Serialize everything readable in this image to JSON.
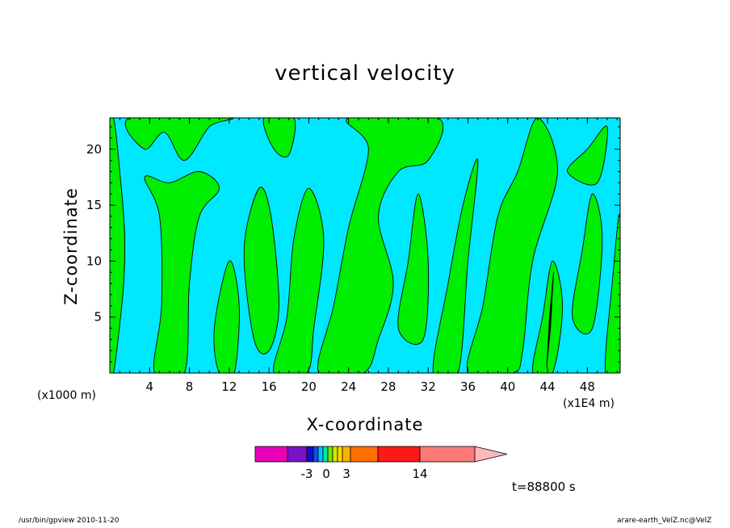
{
  "chart_data": {
    "type": "heatmap",
    "title": "vertical velocity",
    "xlabel": "X-coordinate",
    "ylabel": "Z-coordinate",
    "x_unit_left": "(x1000 m)",
    "x_unit_right": "(x1E4 m)",
    "xlim": [
      0,
      51.3
    ],
    "ylim": [
      0,
      22.8
    ],
    "x_ticks": [
      4,
      8,
      12,
      16,
      20,
      24,
      28,
      32,
      36,
      40,
      44,
      48
    ],
    "x_tick_labels": [
      "4",
      "8",
      "12",
      "16",
      "20",
      "24",
      "28",
      "32",
      "36",
      "40",
      "44",
      "48"
    ],
    "y_ticks": [
      5,
      10,
      15,
      20
    ],
    "y_tick_labels": [
      "5",
      "10",
      "15",
      "20"
    ],
    "background_color": "#00e8ff",
    "fill_color": "#00ee00",
    "extreme_color": "#000000",
    "regions_note_color_meaning": "cyan = near-zero negative, green = near-zero positive",
    "positive_regions": [
      {
        "x": [
          [
            0,
            0
          ],
          [
            1.2,
            6
          ],
          [
            1.5,
            12
          ],
          [
            1.0,
            18
          ],
          [
            0.4,
            22.8
          ],
          [
            0,
            22.8
          ]
        ]
      },
      {
        "x": [
          [
            2,
            22.8
          ],
          [
            3.5,
            20
          ],
          [
            5.5,
            21.5
          ],
          [
            7.5,
            19
          ],
          [
            10,
            22
          ],
          [
            12,
            22.8
          ]
        ]
      },
      {
        "x": [
          [
            3.5,
            17.5
          ],
          [
            5,
            14
          ],
          [
            5.2,
            6
          ],
          [
            4.5,
            0
          ],
          [
            7.5,
            0
          ],
          [
            8,
            8
          ],
          [
            9,
            14
          ],
          [
            11,
            16.5
          ],
          [
            9,
            18
          ],
          [
            6,
            17
          ]
        ]
      },
      {
        "x": [
          [
            10.5,
            4
          ],
          [
            12,
            10
          ],
          [
            13,
            6
          ],
          [
            12.5,
            0
          ],
          [
            11,
            0
          ]
        ]
      },
      {
        "x": [
          [
            13.5,
            11
          ],
          [
            15,
            16.5
          ],
          [
            16.2,
            14
          ],
          [
            17,
            6
          ],
          [
            16,
            2
          ],
          [
            14.5,
            3
          ]
        ]
      },
      {
        "x": [
          [
            15.5,
            22.8
          ],
          [
            16.5,
            20
          ],
          [
            18,
            19.5
          ],
          [
            18.5,
            22.8
          ]
        ]
      },
      {
        "x": [
          [
            16.5,
            0
          ],
          [
            17.8,
            5
          ],
          [
            18.5,
            12
          ],
          [
            20,
            16.5
          ],
          [
            21.5,
            12
          ],
          [
            20.5,
            4
          ],
          [
            19.8,
            0
          ]
        ]
      },
      {
        "x": [
          [
            21,
            0
          ],
          [
            22.5,
            6
          ],
          [
            24,
            13
          ],
          [
            26,
            20
          ],
          [
            24,
            22.8
          ],
          [
            33,
            22.8
          ],
          [
            32,
            19
          ],
          [
            29,
            18
          ],
          [
            27,
            14
          ],
          [
            28.5,
            8
          ],
          [
            27,
            3
          ],
          [
            25.5,
            0
          ]
        ]
      },
      {
        "x": [
          [
            29,
            4
          ],
          [
            30,
            10
          ],
          [
            31,
            16
          ],
          [
            32,
            10
          ],
          [
            31.5,
            3
          ]
        ]
      },
      {
        "x": [
          [
            32.5,
            0
          ],
          [
            34,
            8
          ],
          [
            35.5,
            15
          ],
          [
            37,
            19
          ],
          [
            36,
            10
          ],
          [
            35,
            0
          ]
        ]
      },
      {
        "x": [
          [
            36,
            0
          ],
          [
            37.5,
            6
          ],
          [
            39,
            14
          ],
          [
            41,
            18
          ],
          [
            43,
            22.8
          ],
          [
            45,
            18
          ],
          [
            42.5,
            10
          ],
          [
            41.5,
            2
          ],
          [
            40.5,
            0
          ]
        ]
      },
      {
        "x": [
          [
            42.5,
            0
          ],
          [
            43.5,
            5
          ],
          [
            44.5,
            10
          ],
          [
            45.5,
            6
          ],
          [
            44.5,
            0
          ]
        ]
      },
      {
        "x": [
          [
            46.5,
            5
          ],
          [
            47.5,
            11
          ],
          [
            48.5,
            16
          ],
          [
            49.5,
            12
          ],
          [
            48.5,
            4
          ]
        ]
      },
      {
        "x": [
          [
            49.8,
            0
          ],
          [
            50.5,
            8
          ],
          [
            51.3,
            14
          ],
          [
            51.3,
            0
          ]
        ]
      },
      {
        "x": [
          [
            46,
            18
          ],
          [
            48,
            20
          ],
          [
            50,
            22
          ],
          [
            49,
            17
          ]
        ]
      }
    ],
    "colorbar": {
      "labels": [
        "-3",
        "0",
        "3",
        "14"
      ],
      "segments": [
        {
          "color": "#e800b8",
          "from": 0,
          "to": 40
        },
        {
          "color": "#7a10c8",
          "from": 40,
          "to": 64
        },
        {
          "color": "#1010c8",
          "from": 64,
          "to": 72
        },
        {
          "color": "#1050e8",
          "from": 72,
          "to": 78
        },
        {
          "color": "#00c0ff",
          "from": 78,
          "to": 84
        },
        {
          "color": "#00e8a0",
          "from": 84,
          "to": 90
        },
        {
          "color": "#70e800",
          "from": 90,
          "to": 96
        },
        {
          "color": "#d8e800",
          "from": 96,
          "to": 102
        },
        {
          "color": "#ffd800",
          "from": 102,
          "to": 108
        },
        {
          "color": "#ffb000",
          "from": 108,
          "to": 118
        },
        {
          "color": "#ff7000",
          "from": 118,
          "to": 152
        },
        {
          "color": "#ff1818",
          "from": 152,
          "to": 204
        },
        {
          "color": "#ff7878",
          "from": 204,
          "to": 272
        }
      ],
      "triangle_color": "#ffb8b8"
    }
  },
  "annotations": {
    "timestamp": "t=88800 s",
    "footer_left": "/usr/bin/gpview   2010-11-20",
    "footer_right": "arare-earth_VelZ.nc@VelZ"
  }
}
